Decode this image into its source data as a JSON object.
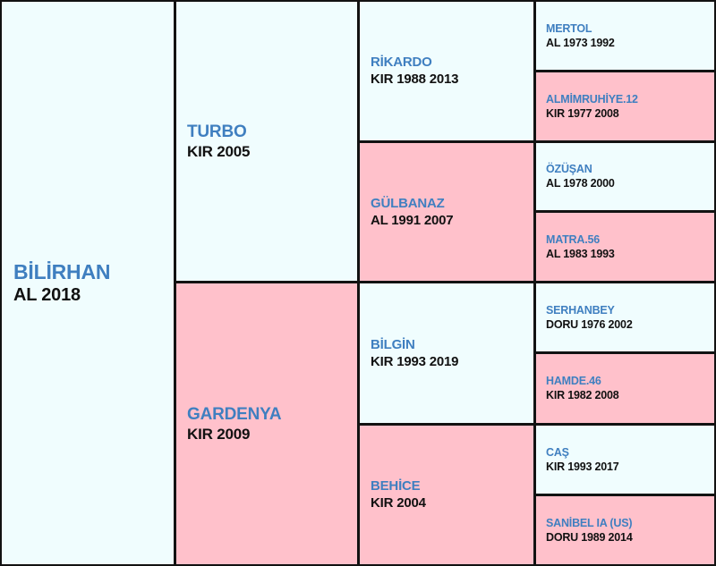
{
  "colors": {
    "male_bg": "#f0fdfe",
    "female_bg": "#ffc1cb",
    "name_text": "#3f7fc0",
    "info_text": "#111111",
    "border": "#121212"
  },
  "horse": {
    "name": "BİLİRHAN",
    "info": "AL 2018"
  },
  "sire": {
    "name": "TURBO",
    "info": "KIR 2005"
  },
  "dam": {
    "name": "GARDENYA",
    "info": "KIR 2009"
  },
  "sire_sire": {
    "name": "RİKARDO",
    "info": "KIR 1988 2013"
  },
  "sire_dam": {
    "name": "GÜLBANAZ",
    "info": "AL 1991 2007"
  },
  "dam_sire": {
    "name": "BİLGİN",
    "info": "KIR 1993 2019"
  },
  "dam_dam": {
    "name": "BEHİCE",
    "info": "KIR 2004"
  },
  "ss_sire": {
    "name": "MERTOL",
    "info": "AL 1973 1992"
  },
  "ss_dam": {
    "name": "ALMİMRUHİYE.12",
    "info": "KIR 1977 2008"
  },
  "sd_sire": {
    "name": "ÖZÜŞAN",
    "info": "AL 1978 2000"
  },
  "sd_dam": {
    "name": "MATRA.56",
    "info": "AL 1983 1993"
  },
  "ds_sire": {
    "name": "SERHANBEY",
    "info": "DORU 1976 2002"
  },
  "ds_dam": {
    "name": "HAMDE.46",
    "info": "KIR 1982 2008"
  },
  "dd_sire": {
    "name": "CAŞ",
    "info": "KIR 1993 2017"
  },
  "dd_dam": {
    "name": "SANİBEL IA (US)",
    "info": "DORU 1989 2014"
  }
}
